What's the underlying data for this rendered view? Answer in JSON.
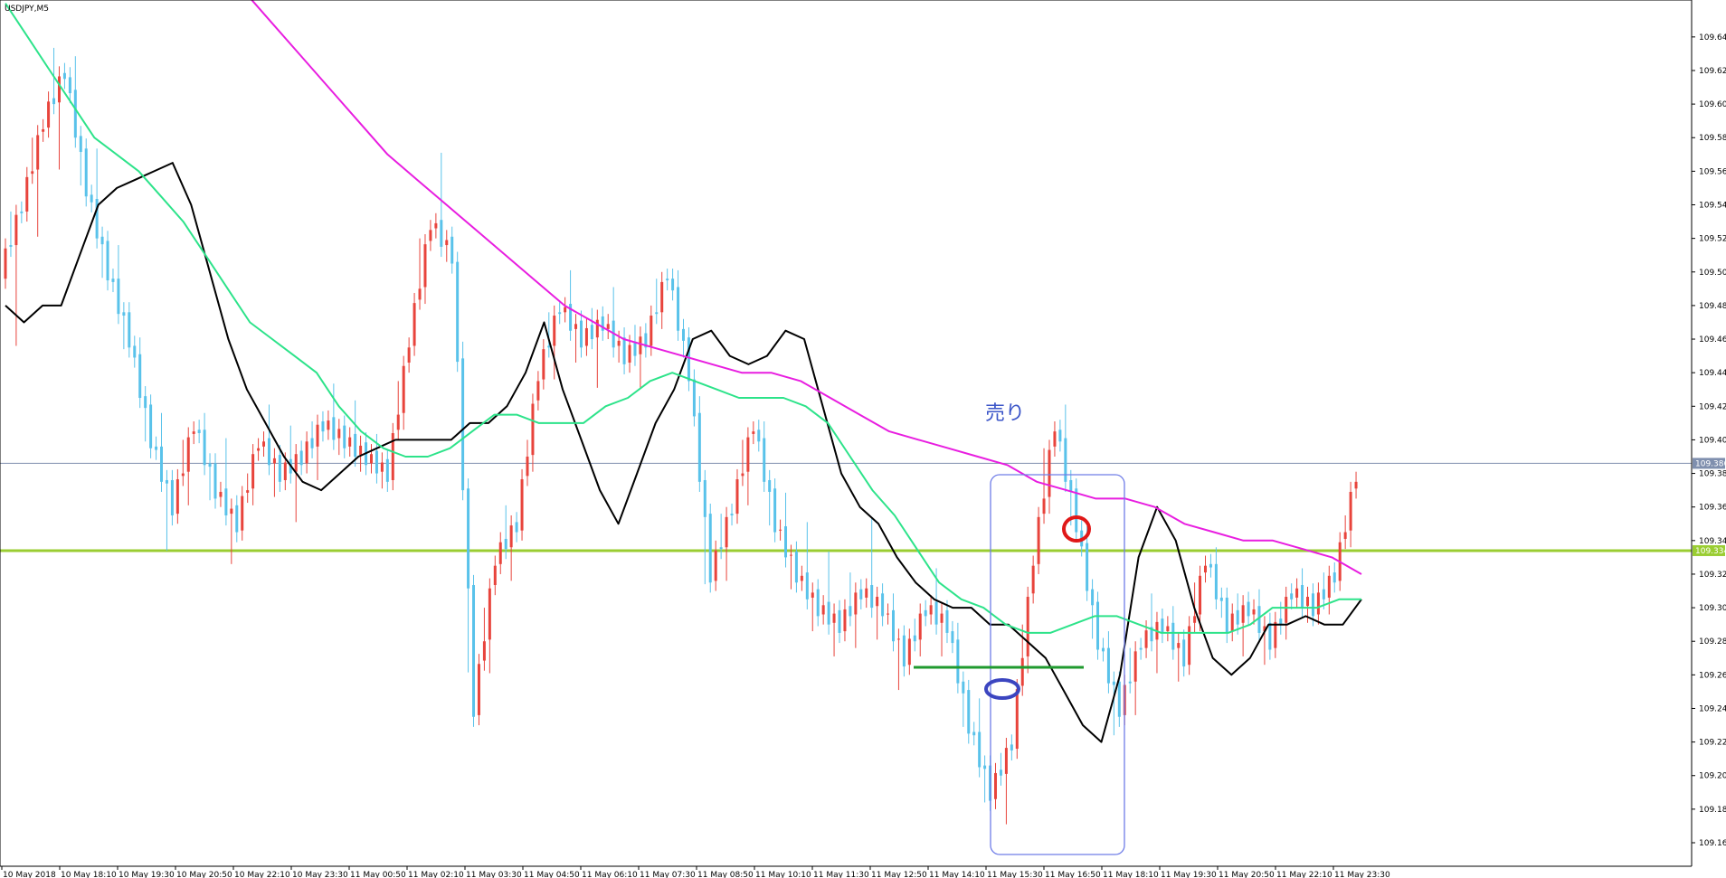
{
  "chart_data": {
    "type": "candlestick",
    "symbol_label": "USDJPY,M5",
    "y_axis": {
      "ticks": [
        109.64,
        109.62,
        109.6,
        109.58,
        109.56,
        109.54,
        109.52,
        109.5,
        109.48,
        109.46,
        109.44,
        109.42,
        109.4,
        109.38,
        109.36,
        109.34,
        109.32,
        109.3,
        109.28,
        109.26,
        109.24,
        109.22,
        109.2,
        109.18,
        109.16
      ],
      "tick_labels": [
        "109.640",
        "109.620",
        "109.600",
        "109.580",
        "109.560",
        "109.540",
        "109.520",
        "109.500",
        "109.480",
        "109.460",
        "109.440",
        "109.420",
        "109.400",
        "109.380",
        "109.360",
        "109.340",
        "109.320",
        "109.300",
        "109.280",
        "109.260",
        "109.240",
        "109.220",
        "109.200",
        "109.180",
        "109.160"
      ],
      "range": [
        109.146,
        109.662
      ]
    },
    "x_axis": {
      "tick_labels": [
        "10 May 2018",
        "10 May 18:10",
        "10 May 19:30",
        "10 May 20:50",
        "10 May 22:10",
        "10 May 23:30",
        "11 May 00:50",
        "11 May 02:10",
        "11 May 03:30",
        "11 May 04:50",
        "11 May 06:10",
        "11 May 07:30",
        "11 May 08:50",
        "11 May 10:10",
        "11 May 11:30",
        "11 May 12:50",
        "11 May 14:10",
        "11 May 15:30",
        "11 May 16:50",
        "11 May 18:10",
        "11 May 19:30",
        "11 May 20:50",
        "11 May 22:10",
        "11 May 23:30"
      ]
    },
    "price_lines": [
      {
        "name": "bid",
        "value": 109.386,
        "label": "109.386",
        "color": "#7f8fae"
      },
      {
        "name": "level",
        "value": 109.334,
        "label": "109.334",
        "color": "#9acd32"
      }
    ],
    "moving_averages": [
      {
        "color": "#000000",
        "values": [
          109.48,
          109.47,
          109.48,
          109.48,
          109.51,
          109.54,
          109.55,
          109.555,
          109.56,
          109.565,
          109.54,
          109.5,
          109.46,
          109.43,
          109.41,
          109.39,
          109.375,
          109.37,
          109.38,
          109.39,
          109.395,
          109.4,
          109.4,
          109.4,
          109.4,
          109.41,
          109.41,
          109.42,
          109.44,
          109.47,
          109.43,
          109.4,
          109.37,
          109.35,
          109.38,
          109.41,
          109.43,
          109.46,
          109.465,
          109.45,
          109.445,
          109.45,
          109.465,
          109.46,
          109.42,
          109.38,
          109.36,
          109.35,
          109.33,
          109.315,
          109.305,
          109.3,
          109.3,
          109.29,
          109.29,
          109.28,
          109.27,
          109.25,
          109.23,
          109.22,
          109.26,
          109.33,
          109.36,
          109.34,
          109.3,
          109.27,
          109.26,
          109.27,
          109.29,
          109.29,
          109.295,
          109.29,
          109.29,
          109.305
        ]
      },
      {
        "color": "#2de38a",
        "values": [
          109.66,
          109.64,
          109.62,
          109.6,
          109.58,
          109.57,
          109.56,
          109.545,
          109.53,
          109.51,
          109.49,
          109.47,
          109.46,
          109.45,
          109.44,
          109.42,
          109.405,
          109.395,
          109.39,
          109.39,
          109.395,
          109.405,
          109.415,
          109.415,
          109.41,
          109.41,
          109.41,
          109.42,
          109.425,
          109.435,
          109.44,
          109.435,
          109.43,
          109.425,
          109.425,
          109.425,
          109.42,
          109.41,
          109.39,
          109.37,
          109.355,
          109.335,
          109.315,
          109.305,
          109.3,
          109.29,
          109.285,
          109.285,
          109.29,
          109.295,
          109.295,
          109.29,
          109.285,
          109.285,
          109.285,
          109.285,
          109.29,
          109.3,
          109.3,
          109.3,
          109.305,
          109.305
        ]
      },
      {
        "color": "#e81ee0",
        "values": [
          109.71,
          109.69,
          109.67,
          109.65,
          109.63,
          109.61,
          109.59,
          109.57,
          109.555,
          109.54,
          109.525,
          109.51,
          109.495,
          109.48,
          109.47,
          109.46,
          109.455,
          109.45,
          109.445,
          109.44,
          109.44,
          109.435,
          109.425,
          109.415,
          109.405,
          109.4,
          109.395,
          109.39,
          109.385,
          109.375,
          109.37,
          109.365,
          109.365,
          109.36,
          109.35,
          109.345,
          109.34,
          109.34,
          109.335,
          109.33,
          109.32
        ]
      }
    ],
    "candles": [
      {
        "o": 109.5,
        "h": 109.56,
        "l": 109.44,
        "c": 109.54
      },
      {
        "o": 109.54,
        "h": 109.61,
        "l": 109.5,
        "c": 109.59
      },
      {
        "o": 109.59,
        "h": 109.65,
        "l": 109.55,
        "c": 109.62
      },
      {
        "o": 109.62,
        "h": 109.64,
        "l": 109.53,
        "c": 109.55
      },
      {
        "o": 109.55,
        "h": 109.58,
        "l": 109.48,
        "c": 109.5
      },
      {
        "o": 109.5,
        "h": 109.52,
        "l": 109.44,
        "c": 109.46
      },
      {
        "o": 109.46,
        "h": 109.47,
        "l": 109.38,
        "c": 109.4
      },
      {
        "o": 109.4,
        "h": 109.42,
        "l": 109.32,
        "c": 109.36
      },
      {
        "o": 109.36,
        "h": 109.43,
        "l": 109.34,
        "c": 109.41
      },
      {
        "o": 109.41,
        "h": 109.42,
        "l": 109.35,
        "c": 109.37
      },
      {
        "o": 109.37,
        "h": 109.4,
        "l": 109.32,
        "c": 109.35
      },
      {
        "o": 109.35,
        "h": 109.41,
        "l": 109.34,
        "c": 109.4
      },
      {
        "o": 109.4,
        "h": 109.42,
        "l": 109.36,
        "c": 109.38
      },
      {
        "o": 109.38,
        "h": 109.41,
        "l": 109.35,
        "c": 109.39
      },
      {
        "o": 109.39,
        "h": 109.42,
        "l": 109.37,
        "c": 109.41
      },
      {
        "o": 109.41,
        "h": 109.43,
        "l": 109.39,
        "c": 109.4
      },
      {
        "o": 109.4,
        "h": 109.42,
        "l": 109.38,
        "c": 109.39
      },
      {
        "o": 109.39,
        "h": 109.4,
        "l": 109.37,
        "c": 109.38
      },
      {
        "o": 109.38,
        "h": 109.48,
        "l": 109.37,
        "c": 109.46
      },
      {
        "o": 109.46,
        "h": 109.56,
        "l": 109.45,
        "c": 109.53
      },
      {
        "o": 109.53,
        "h": 109.57,
        "l": 109.5,
        "c": 109.51
      },
      {
        "o": 109.51,
        "h": 109.52,
        "l": 109.19,
        "c": 109.24
      },
      {
        "o": 109.24,
        "h": 109.35,
        "l": 109.22,
        "c": 109.33
      },
      {
        "o": 109.33,
        "h": 109.37,
        "l": 109.31,
        "c": 109.35
      },
      {
        "o": 109.35,
        "h": 109.45,
        "l": 109.34,
        "c": 109.44
      },
      {
        "o": 109.44,
        "h": 109.5,
        "l": 109.42,
        "c": 109.48
      },
      {
        "o": 109.48,
        "h": 109.5,
        "l": 109.44,
        "c": 109.46
      },
      {
        "o": 109.46,
        "h": 109.48,
        "l": 109.43,
        "c": 109.47
      },
      {
        "o": 109.47,
        "h": 109.49,
        "l": 109.44,
        "c": 109.45
      },
      {
        "o": 109.45,
        "h": 109.47,
        "l": 109.43,
        "c": 109.46
      },
      {
        "o": 109.46,
        "h": 109.52,
        "l": 109.45,
        "c": 109.5
      },
      {
        "o": 109.5,
        "h": 109.51,
        "l": 109.43,
        "c": 109.44
      },
      {
        "o": 109.44,
        "h": 109.45,
        "l": 109.28,
        "c": 109.32
      },
      {
        "o": 109.32,
        "h": 109.38,
        "l": 109.3,
        "c": 109.36
      },
      {
        "o": 109.36,
        "h": 109.43,
        "l": 109.34,
        "c": 109.41
      },
      {
        "o": 109.41,
        "h": 109.42,
        "l": 109.33,
        "c": 109.35
      },
      {
        "o": 109.35,
        "h": 109.37,
        "l": 109.3,
        "c": 109.32
      },
      {
        "o": 109.32,
        "h": 109.35,
        "l": 109.28,
        "c": 109.3
      },
      {
        "o": 109.3,
        "h": 109.33,
        "l": 109.27,
        "c": 109.29
      },
      {
        "o": 109.29,
        "h": 109.33,
        "l": 109.27,
        "c": 109.31
      },
      {
        "o": 109.31,
        "h": 109.35,
        "l": 109.28,
        "c": 109.3
      },
      {
        "o": 109.3,
        "h": 109.31,
        "l": 109.24,
        "c": 109.27
      },
      {
        "o": 109.27,
        "h": 109.31,
        "l": 109.26,
        "c": 109.3
      },
      {
        "o": 109.3,
        "h": 109.32,
        "l": 109.27,
        "c": 109.29
      },
      {
        "o": 109.29,
        "h": 109.3,
        "l": 109.21,
        "c": 109.23
      },
      {
        "o": 109.23,
        "h": 109.25,
        "l": 109.17,
        "c": 109.19
      },
      {
        "o": 109.19,
        "h": 109.23,
        "l": 109.16,
        "c": 109.22
      },
      {
        "o": 109.22,
        "h": 109.35,
        "l": 109.21,
        "c": 109.33
      },
      {
        "o": 109.33,
        "h": 109.44,
        "l": 109.32,
        "c": 109.41
      },
      {
        "o": 109.41,
        "h": 109.43,
        "l": 109.33,
        "c": 109.35
      },
      {
        "o": 109.35,
        "h": 109.36,
        "l": 109.26,
        "c": 109.28
      },
      {
        "o": 109.28,
        "h": 109.29,
        "l": 109.21,
        "c": 109.24
      },
      {
        "o": 109.24,
        "h": 109.3,
        "l": 109.22,
        "c": 109.28
      },
      {
        "o": 109.28,
        "h": 109.31,
        "l": 109.26,
        "c": 109.29
      },
      {
        "o": 109.29,
        "h": 109.3,
        "l": 109.25,
        "c": 109.27
      },
      {
        "o": 109.27,
        "h": 109.35,
        "l": 109.26,
        "c": 109.33
      },
      {
        "o": 109.33,
        "h": 109.34,
        "l": 109.28,
        "c": 109.29
      },
      {
        "o": 109.29,
        "h": 109.31,
        "l": 109.27,
        "c": 109.3
      },
      {
        "o": 109.3,
        "h": 109.31,
        "l": 109.26,
        "c": 109.28
      },
      {
        "o": 109.28,
        "h": 109.32,
        "l": 109.27,
        "c": 109.31
      },
      {
        "o": 109.31,
        "h": 109.32,
        "l": 109.29,
        "c": 109.3
      },
      {
        "o": 109.3,
        "h": 109.33,
        "l": 109.29,
        "c": 109.32
      },
      {
        "o": 109.32,
        "h": 109.39,
        "l": 109.31,
        "c": 109.38
      }
    ],
    "annotations": {
      "note_text": "売り"
    }
  }
}
